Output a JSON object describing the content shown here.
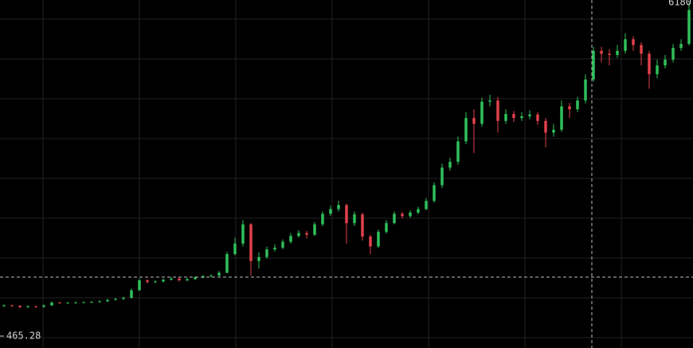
{
  "chart_data": {
    "type": "candlestick",
    "x": [
      0,
      1,
      2,
      3,
      4,
      5,
      6,
      7,
      8,
      9,
      10,
      11,
      12,
      13,
      14,
      15,
      16,
      17,
      18,
      19,
      20,
      21,
      22,
      23,
      24,
      25,
      26,
      27,
      28,
      29,
      30,
      31,
      32,
      33,
      34,
      35,
      36,
      37,
      38,
      39,
      40,
      41,
      42,
      43,
      44,
      45,
      46,
      47,
      48,
      49,
      50,
      51,
      52,
      53,
      54,
      55,
      56,
      57,
      58,
      59,
      60,
      61,
      62,
      63,
      64,
      65,
      66,
      67,
      68,
      69,
      70,
      71,
      72,
      73,
      74,
      75,
      76,
      77,
      78,
      79,
      80,
      81,
      82,
      83,
      84,
      85,
      86
    ],
    "open": [
      980,
      990,
      985,
      960,
      975,
      965,
      990,
      1040,
      1030,
      1035,
      1040,
      1045,
      1050,
      1060,
      1085,
      1100,
      1120,
      1250,
      1420,
      1390,
      1400,
      1430,
      1450,
      1420,
      1440,
      1470,
      1490,
      1500,
      1550,
      1870,
      2050,
      2380,
      1750,
      1820,
      1950,
      1980,
      2080,
      2180,
      2230,
      2200,
      2380,
      2560,
      2640,
      2710,
      2400,
      2550,
      2170,
      2000,
      2250,
      2400,
      2560,
      2520,
      2580,
      2640,
      2780,
      3050,
      3350,
      3450,
      3800,
      4200,
      4100,
      4480,
      4500,
      4150,
      4270,
      4200,
      4230,
      4260,
      4150,
      3950,
      4000,
      4400,
      4350,
      4500,
      4860,
      5350,
      5300,
      5280,
      5350,
      5550,
      5450,
      5300,
      4950,
      5100,
      5200,
      5400,
      5470
    ],
    "high": [
      1010,
      1005,
      995,
      990,
      985,
      1005,
      1055,
      1050,
      1050,
      1055,
      1060,
      1065,
      1075,
      1100,
      1120,
      1140,
      1280,
      1450,
      1440,
      1420,
      1450,
      1475,
      1465,
      1460,
      1490,
      1510,
      1525,
      1580,
      1910,
      2150,
      2450,
      2400,
      1900,
      2000,
      2040,
      2120,
      2230,
      2280,
      2270,
      2420,
      2600,
      2700,
      2780,
      2730,
      2600,
      2580,
      2200,
      2290,
      2450,
      2600,
      2590,
      2620,
      2680,
      2830,
      3100,
      3420,
      3520,
      3880,
      4300,
      4350,
      4550,
      4600,
      4560,
      4350,
      4320,
      4300,
      4330,
      4300,
      4200,
      4100,
      4500,
      4460,
      4560,
      4950,
      5420,
      5420,
      5380,
      5450,
      5650,
      5600,
      5500,
      5350,
      5200,
      5280,
      5470,
      5550,
      6180
    ],
    "low": [
      965,
      970,
      945,
      950,
      950,
      955,
      985,
      1020,
      1020,
      1025,
      1030,
      1035,
      1040,
      1050,
      1075,
      1090,
      1110,
      1240,
      1370,
      1375,
      1385,
      1415,
      1400,
      1405,
      1430,
      1455,
      1475,
      1490,
      1540,
      1850,
      2000,
      1500,
      1620,
      1790,
      1910,
      1950,
      2050,
      2150,
      2140,
      2180,
      2350,
      2520,
      2600,
      2050,
      2350,
      2100,
      1870,
      1980,
      2220,
      2380,
      2480,
      2490,
      2550,
      2620,
      2750,
      3000,
      3300,
      3400,
      3750,
      3600,
      4050,
      4400,
      3950,
      4100,
      4130,
      4150,
      4180,
      4080,
      3700,
      3880,
      3960,
      4200,
      4300,
      4450,
      4820,
      5150,
      5100,
      5230,
      5300,
      5350,
      5100,
      4700,
      4880,
      5050,
      5150,
      5350,
      5440
    ],
    "close": [
      990,
      985,
      960,
      975,
      965,
      990,
      1040,
      1030,
      1035,
      1040,
      1045,
      1050,
      1060,
      1085,
      1100,
      1120,
      1250,
      1420,
      1390,
      1400,
      1430,
      1450,
      1420,
      1440,
      1470,
      1490,
      1500,
      1550,
      1870,
      2050,
      2380,
      1750,
      1820,
      1950,
      1980,
      2080,
      2180,
      2230,
      2200,
      2380,
      2560,
      2640,
      2710,
      2400,
      2550,
      2170,
      2000,
      2250,
      2400,
      2560,
      2520,
      2580,
      2640,
      2780,
      3050,
      3350,
      3450,
      3800,
      4200,
      4100,
      4480,
      4500,
      4150,
      4270,
      4200,
      4230,
      4260,
      4150,
      3950,
      4000,
      4400,
      4350,
      4500,
      4860,
      5350,
      5300,
      5280,
      5350,
      5550,
      5450,
      5300,
      4950,
      5100,
      5200,
      5400,
      5470,
      6050
    ],
    "up_color": "#2fbf5a",
    "down_color": "#e0414b",
    "xlim": [
      -0.5,
      86.5
    ],
    "ylim": [
      261,
      6221
    ],
    "yticks": [
      465.28
    ],
    "price_label": 6180,
    "grid": true,
    "xgrid": [
      4.9,
      17,
      29.1,
      41.2,
      53.3,
      65.4,
      77.5
    ],
    "ygrid": [
      5894,
      5212,
      4530,
      3848,
      3166,
      2484,
      1802,
      1120,
      438
    ],
    "crosshair": {
      "x": 73.8,
      "y": 1475
    }
  }
}
